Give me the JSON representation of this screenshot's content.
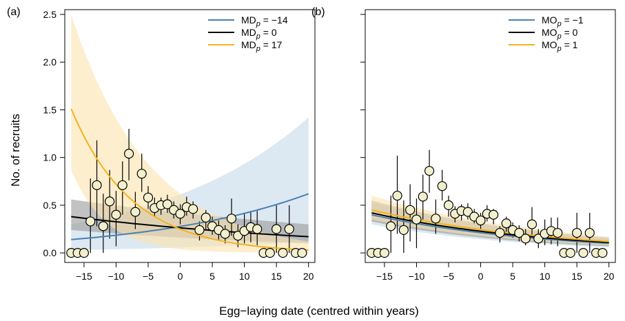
{
  "figure": {
    "shared_ylabel": "No. of recruits",
    "shared_xlabel": "Egg−laying date (centred within years)"
  },
  "chart_data": [
    {
      "type": "line",
      "panel_label": "(a)",
      "ylabel": "No. of recruits",
      "xlim": [
        -18,
        21
      ],
      "ylim": [
        -0.1,
        2.55
      ],
      "x_ticks": [
        -15,
        -10,
        -5,
        0,
        5,
        10,
        15,
        20
      ],
      "y_ticks": [
        0.0,
        0.5,
        1.0,
        1.5,
        2.0,
        2.5
      ],
      "y_tick_labels": [
        "0.0",
        "0.5",
        "1.0",
        "1.5",
        "2.0",
        "2.5"
      ],
      "legend_position": "top-right",
      "series": [
        {
          "name": "MD",
          "sub": "p",
          "value": "= −14",
          "color": "#4a7fb0",
          "band_color": "#c5d8ea",
          "x": [
            -17,
            20
          ],
          "y": [
            0.14,
            0.62
          ],
          "lower": [
            0.03,
            0.12
          ],
          "upper": [
            0.3,
            1.42
          ]
        },
        {
          "name": "MD",
          "sub": "p",
          "value": "= 0",
          "color": "#000000",
          "band_color": "#9a9a9a",
          "x": [
            -17,
            20
          ],
          "y": [
            0.38,
            0.17
          ],
          "lower": [
            0.24,
            0.1
          ],
          "upper": [
            0.56,
            0.3
          ]
        },
        {
          "name": "MD",
          "sub": "p",
          "value": "= 17",
          "color": "#f5b21a",
          "band_color": "#fbe3ad",
          "x": [
            -17,
            20
          ],
          "y": [
            1.51,
            0.03
          ],
          "lower": [
            0.87,
            0.0
          ],
          "upper": [
            2.5,
            0.12
          ]
        }
      ],
      "points": [
        {
          "x": -17,
          "y": 0,
          "lo": 0,
          "hi": 0
        },
        {
          "x": -16,
          "y": 0,
          "lo": 0,
          "hi": 0
        },
        {
          "x": -15,
          "y": 0,
          "lo": 0,
          "hi": 0
        },
        {
          "x": -14,
          "y": 0.33,
          "lo": 0.0,
          "hi": 0.78
        },
        {
          "x": -13,
          "y": 0.71,
          "lo": 0.28,
          "hi": 1.18
        },
        {
          "x": -12,
          "y": 0.28,
          "lo": 0.0,
          "hi": 0.62
        },
        {
          "x": -11,
          "y": 0.54,
          "lo": 0.15,
          "hi": 0.87
        },
        {
          "x": -10,
          "y": 0.4,
          "lo": 0.07,
          "hi": 0.65
        },
        {
          "x": -9,
          "y": 0.71,
          "lo": 0.4,
          "hi": 0.96
        },
        {
          "x": -8,
          "y": 1.04,
          "lo": 0.76,
          "hi": 1.3
        },
        {
          "x": -7,
          "y": 0.43,
          "lo": 0.25,
          "hi": 0.64
        },
        {
          "x": -6,
          "y": 0.83,
          "lo": 0.64,
          "hi": 1.04
        },
        {
          "x": -5,
          "y": 0.58,
          "lo": 0.46,
          "hi": 0.7
        },
        {
          "x": -4,
          "y": 0.47,
          "lo": 0.38,
          "hi": 0.58
        },
        {
          "x": -3,
          "y": 0.5,
          "lo": 0.4,
          "hi": 0.58
        },
        {
          "x": -2,
          "y": 0.51,
          "lo": 0.42,
          "hi": 0.61
        },
        {
          "x": -1,
          "y": 0.45,
          "lo": 0.36,
          "hi": 0.54
        },
        {
          "x": 0,
          "y": 0.41,
          "lo": 0.3,
          "hi": 0.51
        },
        {
          "x": 1,
          "y": 0.48,
          "lo": 0.39,
          "hi": 0.59
        },
        {
          "x": 2,
          "y": 0.46,
          "lo": 0.36,
          "hi": 0.54
        },
        {
          "x": 3,
          "y": 0.24,
          "lo": 0.13,
          "hi": 0.33
        },
        {
          "x": 4,
          "y": 0.37,
          "lo": 0.25,
          "hi": 0.45
        },
        {
          "x": 5,
          "y": 0.28,
          "lo": 0.19,
          "hi": 0.38
        },
        {
          "x": 6,
          "y": 0.24,
          "lo": 0.14,
          "hi": 0.34
        },
        {
          "x": 7,
          "y": 0.2,
          "lo": 0.1,
          "hi": 0.29
        },
        {
          "x": 8,
          "y": 0.36,
          "lo": 0.18,
          "hi": 0.57
        },
        {
          "x": 9,
          "y": 0.18,
          "lo": 0.06,
          "hi": 0.3
        },
        {
          "x": 10,
          "y": 0.23,
          "lo": 0.1,
          "hi": 0.41
        },
        {
          "x": 11,
          "y": 0.27,
          "lo": 0.11,
          "hi": 0.44
        },
        {
          "x": 12,
          "y": 0.25,
          "lo": 0.08,
          "hi": 0.44
        },
        {
          "x": 13,
          "y": 0,
          "lo": 0,
          "hi": 0
        },
        {
          "x": 14,
          "y": 0,
          "lo": 0,
          "hi": 0
        },
        {
          "x": 15,
          "y": 0.25,
          "lo": 0.0,
          "hi": 0.5
        },
        {
          "x": 16,
          "y": 0,
          "lo": 0,
          "hi": 0
        },
        {
          "x": 17,
          "y": 0.25,
          "lo": 0.0,
          "hi": 0.5
        },
        {
          "x": 18,
          "y": 0,
          "lo": 0,
          "hi": 0
        },
        {
          "x": 19,
          "y": 0,
          "lo": 0,
          "hi": 0
        }
      ]
    },
    {
      "type": "line",
      "panel_label": "(b)",
      "ylabel": "",
      "xlim": [
        -18,
        21
      ],
      "ylim": [
        -0.1,
        2.55
      ],
      "x_ticks": [
        -15,
        -10,
        -5,
        0,
        5,
        10,
        15,
        20
      ],
      "y_ticks": [
        0.0,
        0.5,
        1.0,
        1.5,
        2.0,
        2.5
      ],
      "y_tick_labels": [],
      "legend_position": "top-right",
      "series": [
        {
          "name": "MO",
          "sub": "p",
          "value": "= −1",
          "color": "#4a7fb0",
          "band_color": "#c5d8ea",
          "x": [
            -17,
            20
          ],
          "y": [
            0.4,
            0.1
          ],
          "lower": [
            0.3,
            0.06
          ],
          "upper": [
            0.53,
            0.15
          ]
        },
        {
          "name": "MO",
          "sub": "p",
          "value": "= 0",
          "color": "#000000",
          "band_color": "#9a9a9a",
          "x": [
            -17,
            20
          ],
          "y": [
            0.42,
            0.11
          ],
          "lower": [
            0.33,
            0.07
          ],
          "upper": [
            0.55,
            0.16
          ]
        },
        {
          "name": "MO",
          "sub": "p",
          "value": "= 1",
          "color": "#f5b21a",
          "band_color": "#fbe3ad",
          "x": [
            -17,
            20
          ],
          "y": [
            0.45,
            0.12
          ],
          "lower": [
            0.35,
            0.08
          ],
          "upper": [
            0.6,
            0.17
          ]
        }
      ],
      "points": [
        {
          "x": -17,
          "y": 0,
          "lo": 0,
          "hi": 0
        },
        {
          "x": -16,
          "y": 0,
          "lo": 0,
          "hi": 0
        },
        {
          "x": -15,
          "y": 0,
          "lo": 0,
          "hi": 0
        },
        {
          "x": -14,
          "y": 0.28,
          "lo": 0.0,
          "hi": 0.6
        },
        {
          "x": -13,
          "y": 0.6,
          "lo": 0.2,
          "hi": 1.02
        },
        {
          "x": -12,
          "y": 0.24,
          "lo": 0.0,
          "hi": 0.55
        },
        {
          "x": -11,
          "y": 0.45,
          "lo": 0.12,
          "hi": 0.72
        },
        {
          "x": -10,
          "y": 0.35,
          "lo": 0.05,
          "hi": 0.57
        },
        {
          "x": -9,
          "y": 0.59,
          "lo": 0.35,
          "hi": 0.82
        },
        {
          "x": -8,
          "y": 0.86,
          "lo": 0.63,
          "hi": 1.08
        },
        {
          "x": -7,
          "y": 0.36,
          "lo": 0.2,
          "hi": 0.56
        },
        {
          "x": -6,
          "y": 0.7,
          "lo": 0.55,
          "hi": 0.87
        },
        {
          "x": -5,
          "y": 0.5,
          "lo": 0.38,
          "hi": 0.6
        },
        {
          "x": -4,
          "y": 0.41,
          "lo": 0.32,
          "hi": 0.49
        },
        {
          "x": -3,
          "y": 0.44,
          "lo": 0.34,
          "hi": 0.51
        },
        {
          "x": -2,
          "y": 0.43,
          "lo": 0.35,
          "hi": 0.52
        },
        {
          "x": -1,
          "y": 0.38,
          "lo": 0.31,
          "hi": 0.46
        },
        {
          "x": 0,
          "y": 0.34,
          "lo": 0.25,
          "hi": 0.42
        },
        {
          "x": 1,
          "y": 0.41,
          "lo": 0.33,
          "hi": 0.5
        },
        {
          "x": 2,
          "y": 0.4,
          "lo": 0.3,
          "hi": 0.46
        },
        {
          "x": 3,
          "y": 0.21,
          "lo": 0.11,
          "hi": 0.28
        },
        {
          "x": 4,
          "y": 0.31,
          "lo": 0.21,
          "hi": 0.38
        },
        {
          "x": 5,
          "y": 0.24,
          "lo": 0.16,
          "hi": 0.32
        },
        {
          "x": 6,
          "y": 0.21,
          "lo": 0.12,
          "hi": 0.29
        },
        {
          "x": 7,
          "y": 0.15,
          "lo": 0.08,
          "hi": 0.25
        },
        {
          "x": 8,
          "y": 0.3,
          "lo": 0.15,
          "hi": 0.48
        },
        {
          "x": 9,
          "y": 0.15,
          "lo": 0.05,
          "hi": 0.25
        },
        {
          "x": 10,
          "y": 0.2,
          "lo": 0.08,
          "hi": 0.35
        },
        {
          "x": 11,
          "y": 0.23,
          "lo": 0.09,
          "hi": 0.37
        },
        {
          "x": 12,
          "y": 0.21,
          "lo": 0.07,
          "hi": 0.37
        },
        {
          "x": 13,
          "y": 0,
          "lo": 0,
          "hi": 0
        },
        {
          "x": 14,
          "y": 0,
          "lo": 0,
          "hi": 0
        },
        {
          "x": 15,
          "y": 0.21,
          "lo": 0.0,
          "hi": 0.42
        },
        {
          "x": 16,
          "y": 0,
          "lo": 0,
          "hi": 0
        },
        {
          "x": 17,
          "y": 0.21,
          "lo": 0.0,
          "hi": 0.42
        },
        {
          "x": 18,
          "y": 0,
          "lo": 0,
          "hi": 0
        },
        {
          "x": 19,
          "y": 0,
          "lo": 0,
          "hi": 0
        }
      ]
    }
  ]
}
